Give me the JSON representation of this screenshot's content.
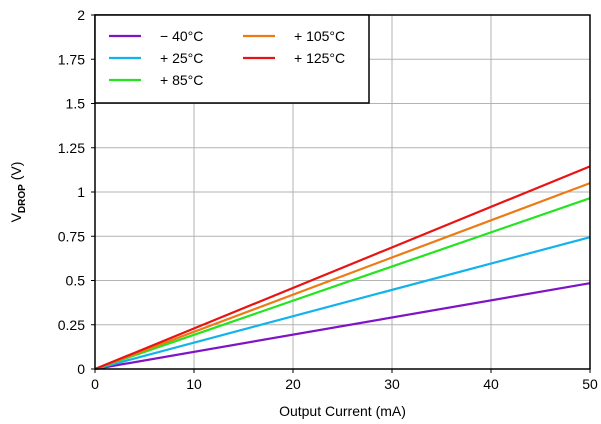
{
  "chart_data": {
    "type": "line",
    "title": "",
    "xlabel": "Output Current (mA)",
    "ylabel_main": "V",
    "ylabel_sub": "DROP",
    "ylabel_unit": " (V)",
    "xlim": [
      0,
      50
    ],
    "ylim": [
      0,
      2
    ],
    "xticks": [
      0,
      10,
      20,
      30,
      40,
      50
    ],
    "yticks": [
      0,
      0.25,
      0.5,
      0.75,
      1,
      1.25,
      1.5,
      1.75,
      2
    ],
    "xtick_labels": [
      "0",
      "10",
      "20",
      "30",
      "40",
      "50"
    ],
    "ytick_labels": [
      "0",
      "0.25",
      "0.5",
      "0.75",
      "1",
      "1.25",
      "1.5",
      "1.75",
      "2"
    ],
    "grid": true,
    "legend_position": "top-left",
    "series": [
      {
        "name": "− 40°C",
        "color": "#7f14c6",
        "x": [
          0,
          50
        ],
        "y": [
          0,
          0.485
        ]
      },
      {
        "name": "+ 25°C",
        "color": "#12b3ec",
        "x": [
          0,
          50
        ],
        "y": [
          0,
          0.745
        ]
      },
      {
        "name": "+ 85°C",
        "color": "#22e51f",
        "x": [
          0,
          50
        ],
        "y": [
          0,
          0.965
        ]
      },
      {
        "name": "+ 105°C",
        "color": "#ec7b14",
        "x": [
          0,
          50
        ],
        "y": [
          0,
          1.05
        ]
      },
      {
        "name": "+ 125°C",
        "color": "#e81414",
        "x": [
          0,
          50
        ],
        "y": [
          0,
          1.145
        ]
      }
    ]
  }
}
